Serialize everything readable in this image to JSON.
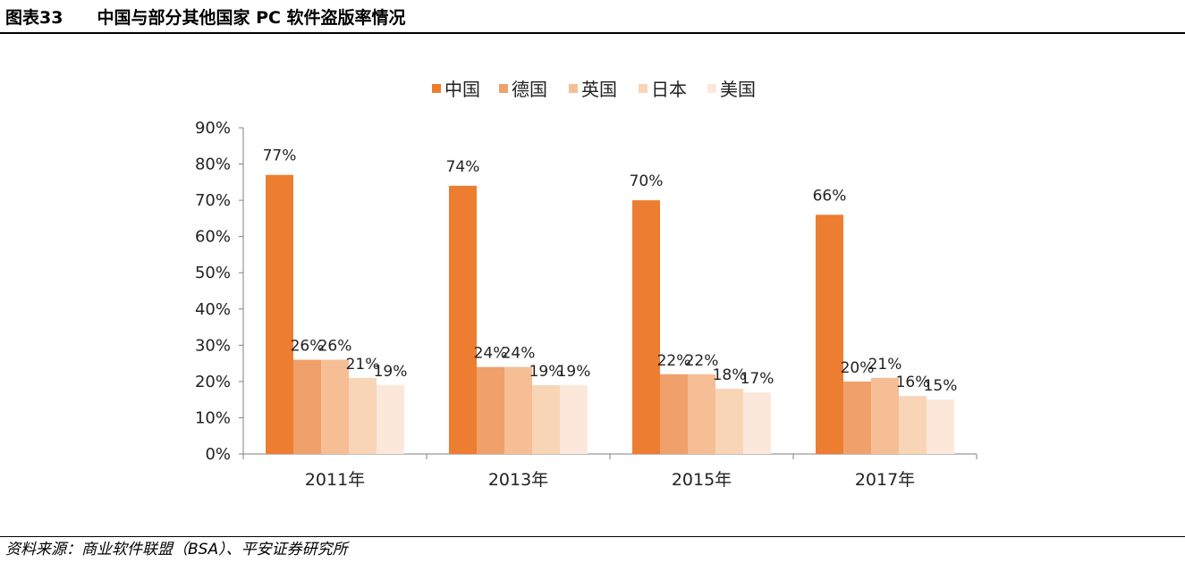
{
  "figure": {
    "label": "图表33",
    "title": "中国与部分其他国家 PC 软件盗版率情况",
    "source": "资料来源：商业软件联盟（BSA）、平安证券研究所"
  },
  "chart_data": {
    "type": "bar",
    "title": "",
    "xlabel": "",
    "ylabel": "",
    "categories": [
      "2011年",
      "2013年",
      "2015年",
      "2017年"
    ],
    "series": [
      {
        "name": "中国",
        "color": "#ED7D31",
        "values": [
          77,
          74,
          70,
          66
        ],
        "labels": [
          "77%",
          "74%",
          "70%",
          "66%"
        ]
      },
      {
        "name": "德国",
        "color": "#F0A06A",
        "values": [
          26,
          24,
          22,
          20
        ],
        "labels": [
          "26%",
          "24%",
          "22%",
          "20%"
        ]
      },
      {
        "name": "英国",
        "color": "#F6BE95",
        "values": [
          26,
          24,
          22,
          21
        ],
        "labels": [
          "26%",
          "24%",
          "22%",
          "21%"
        ]
      },
      {
        "name": "日本",
        "color": "#F9D5B8",
        "values": [
          21,
          19,
          18,
          16
        ],
        "labels": [
          "21%",
          "19%",
          "18%",
          "16%"
        ]
      },
      {
        "name": "美国",
        "color": "#FCE8DA",
        "values": [
          19,
          19,
          17,
          15
        ],
        "labels": [
          "19%",
          "19%",
          "17%",
          "15%"
        ]
      }
    ],
    "ylim": [
      0,
      90
    ],
    "yticks": [
      0,
      10,
      20,
      30,
      40,
      50,
      60,
      70,
      80,
      90
    ],
    "ytick_labels": [
      "0%",
      "10%",
      "20%",
      "30%",
      "40%",
      "50%",
      "60%",
      "70%",
      "80%",
      "90%"
    ],
    "legend_position": "top-center",
    "grid": false
  }
}
